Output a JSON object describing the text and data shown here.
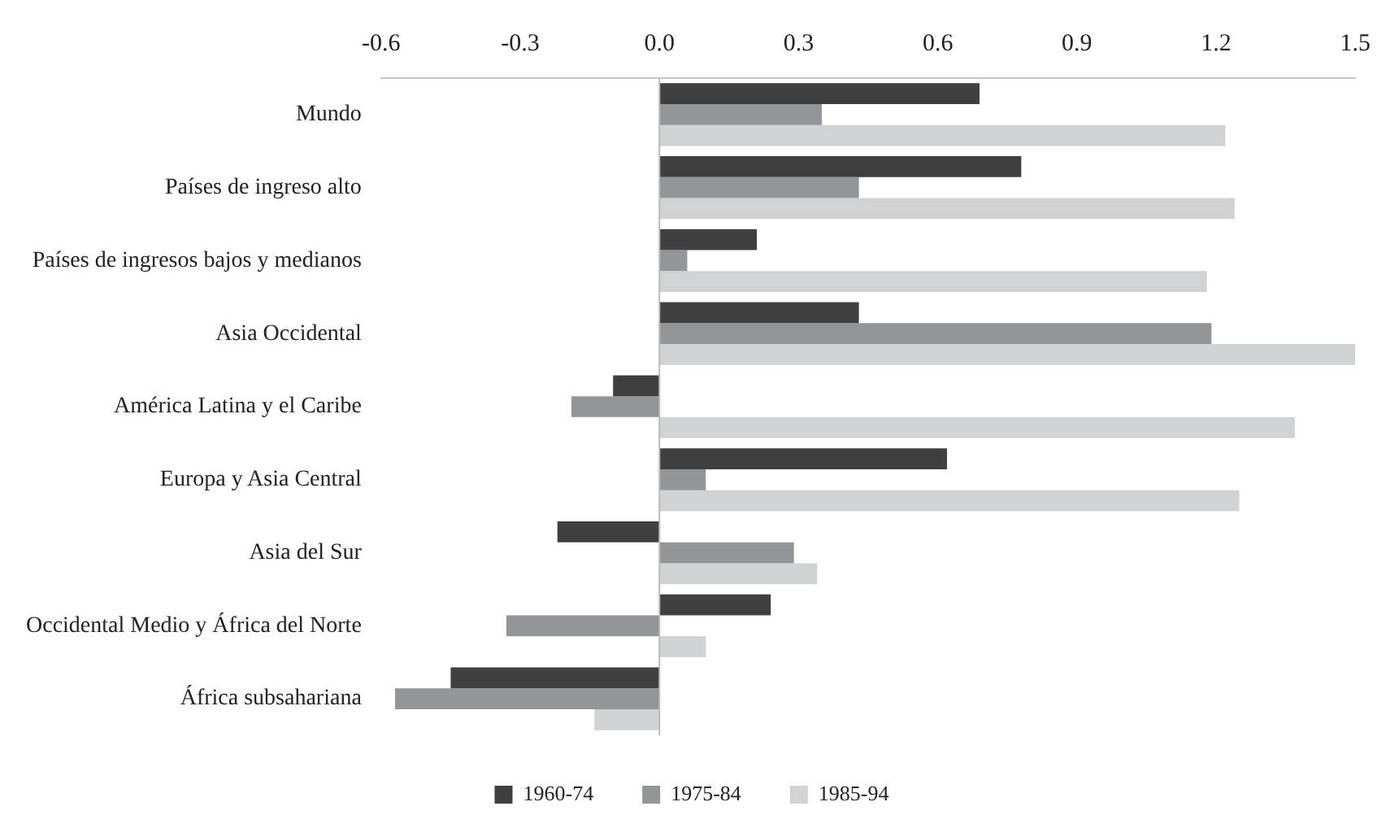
{
  "chart_data": {
    "type": "bar",
    "orientation": "horizontal",
    "categories": [
      "Mundo",
      "Países de ingreso alto",
      "Países de ingresos bajos y medianos",
      "Asia Occidental",
      "América Latina y el Caribe",
      "Europa y Asia Central",
      "Asia del Sur",
      "Occidental Medio y África del Norte",
      "África subsahariana"
    ],
    "series": [
      {
        "name": "1960-74",
        "color": "#404040",
        "values": [
          0.69,
          0.78,
          0.21,
          0.43,
          -0.1,
          0.62,
          -0.22,
          0.24,
          -0.45
        ]
      },
      {
        "name": "1975-84",
        "color": "#949598",
        "values": [
          0.35,
          0.43,
          0.06,
          1.19,
          -0.19,
          0.1,
          0.29,
          -0.33,
          -0.57
        ]
      },
      {
        "name": "1985-94",
        "color": "#d1d2d4",
        "values": [
          1.22,
          1.24,
          1.18,
          1.5,
          1.37,
          1.25,
          0.34,
          0.1,
          -0.14
        ]
      }
    ],
    "xlim": [
      -0.6,
      1.5
    ],
    "xticks": [
      {
        "value": -0.6,
        "label": "-0.6"
      },
      {
        "value": -0.3,
        "label": "-0.3"
      },
      {
        "value": 0,
        "label": "0.0"
      },
      {
        "value": 0.3,
        "label": "0.3"
      },
      {
        "value": 0.6,
        "label": "0.6"
      },
      {
        "value": 0.9,
        "label": "0.9"
      },
      {
        "value": 1.2,
        "label": "1.2"
      },
      {
        "value": 1.5,
        "label": "1.5"
      }
    ],
    "ref_lines": [
      {
        "axis": "x",
        "value": 0,
        "color": "#bbbbbb"
      }
    ],
    "grid": false,
    "legend": "bottom"
  }
}
